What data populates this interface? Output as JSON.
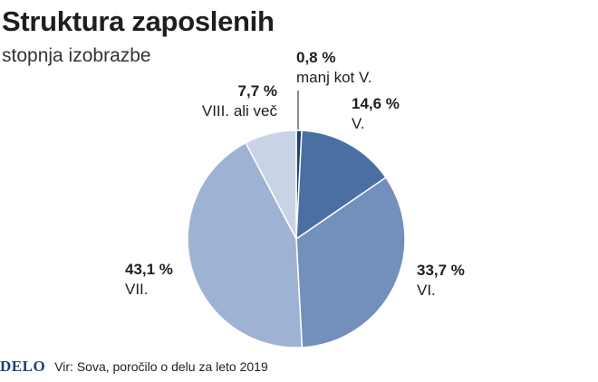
{
  "header": {
    "title": "Struktura zaposlenih",
    "subtitle": "stopnja izobrazbe"
  },
  "chart_data": {
    "type": "pie",
    "title": "Struktura zaposlenih",
    "subtitle": "stopnja izobrazbe",
    "slices": [
      {
        "label": "manj kot V.",
        "value": 0.8,
        "value_label": "0,8 %",
        "color": "#1f3f73"
      },
      {
        "label": "V.",
        "value": 14.6,
        "value_label": "14,6 %",
        "color": "#4a6fa3"
      },
      {
        "label": "VI.",
        "value": 33.7,
        "value_label": "33,7 %",
        "color": "#7290bb"
      },
      {
        "label": "VII.",
        "value": 43.1,
        "value_label": "43,1 %",
        "color": "#9eb3d3"
      },
      {
        "label": "VIII. ali več",
        "value": 7.7,
        "value_label": "7,7 %",
        "color": "#c8d3e6"
      }
    ]
  },
  "footer": {
    "logo": "DELO",
    "source": "Vir: Sova, poročilo o delu za leto 2019"
  }
}
